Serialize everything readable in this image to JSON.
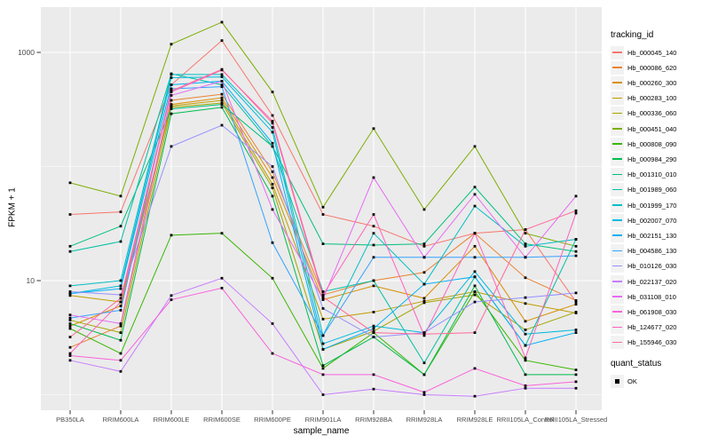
{
  "chart_data": {
    "type": "line",
    "title": "",
    "xlabel": "sample_name",
    "ylabel": "FPKM + 1",
    "y_scale": "log10",
    "ylim": [
      0.73,
      2500
    ],
    "grid": true,
    "panel_bg": "#EBEBEB",
    "grid_color": "#FFFFFF",
    "point_color": "#000000",
    "y_ticks": [
      {
        "value": 10,
        "label": "10"
      },
      {
        "value": 1000,
        "label": "1000"
      }
    ],
    "y_minor_ticks": [
      1,
      100
    ],
    "categories": [
      "PB350LA",
      "RRIM600LA",
      "RRIM600LE",
      "RRIM600SE",
      "RRIM600PE",
      "RRIM901LA",
      "RRIM928BA",
      "RRIM928LA",
      "RRIM928LE",
      "RRII105LA_Control",
      "RRII105LA_Stressed"
    ],
    "series": [
      {
        "name": "Hb_000045_140",
        "color": "#F8766D",
        "values": [
          38,
          40,
          520,
          1270,
          280,
          38,
          30,
          20,
          26,
          28,
          6.5
        ]
      },
      {
        "name": "Hb_000086_620",
        "color": "#EA8331",
        "values": [
          2.6,
          4.0,
          380,
          430,
          90,
          7.5,
          10,
          11.8,
          26,
          10.6,
          6.7
        ]
      },
      {
        "name": "Hb_000260_300",
        "color": "#D89000",
        "values": [
          4.0,
          6.0,
          350,
          400,
          80,
          6.8,
          9.0,
          7.0,
          20,
          4.4,
          6.2
        ]
      },
      {
        "name": "Hb_000283_100",
        "color": "#C09B00",
        "values": [
          7.4,
          6.5,
          340,
          380,
          70,
          4.6,
          5.3,
          6.6,
          8.0,
          6.3,
          5.2
        ]
      },
      {
        "name": "Hb_000336_060",
        "color": "#A3A500",
        "values": [
          4.5,
          3.5,
          330,
          360,
          65,
          2.5,
          3.6,
          6.4,
          7.5,
          3.7,
          5.3
        ]
      },
      {
        "name": "Hb_000451_040",
        "color": "#7CAE00",
        "values": [
          72,
          55,
          1180,
          1840,
          450,
          44,
          215,
          42,
          150,
          26,
          20
        ]
      },
      {
        "name": "Hb_000808_090",
        "color": "#39B600",
        "values": [
          3.8,
          2.3,
          25,
          26,
          10.5,
          1.7,
          3.5,
          1.5,
          8.0,
          2.0,
          1.65
        ]
      },
      {
        "name": "Hb_000984_290",
        "color": "#00BB4E",
        "values": [
          4.2,
          3.0,
          290,
          330,
          55,
          1.8,
          3.2,
          1.5,
          9.0,
          1.5,
          1.5
        ]
      },
      {
        "name": "Hb_001310_010",
        "color": "#00BF7D",
        "values": [
          20,
          30,
          320,
          350,
          150,
          21,
          20.5,
          21,
          66,
          21,
          18
        ]
      },
      {
        "name": "Hb_001989_060",
        "color": "#00C1A3",
        "values": [
          18,
          22,
          650,
          520,
          150,
          8.0,
          10,
          1.9,
          10.8,
          2.7,
          23
        ]
      },
      {
        "name": "Hb_001999_170",
        "color": "#00BFC4",
        "values": [
          9.0,
          10,
          640,
          640,
          220,
          3.3,
          26,
          9.3,
          45,
          20,
          23
        ]
      },
      {
        "name": "Hb_002007_070",
        "color": "#00BAE0",
        "values": [
          7.7,
          9.0,
          600,
          610,
          200,
          2.8,
          4.0,
          3.5,
          12,
          3.4,
          3.7
        ]
      },
      {
        "name": "Hb_002151_130",
        "color": "#00B0F6",
        "values": [
          7.7,
          8.5,
          520,
          560,
          160,
          2.5,
          3.8,
          9.3,
          10.8,
          2.7,
          3.5
        ]
      },
      {
        "name": "Hb_004586_130",
        "color": "#35A2FF",
        "values": [
          4.7,
          5.5,
          480,
          500,
          21.5,
          3.3,
          16,
          16,
          16,
          16,
          16.5
        ]
      },
      {
        "name": "Hb_010126_030",
        "color": "#9590FF",
        "values": [
          8.0,
          7.5,
          150,
          230,
          100,
          5.7,
          3.2,
          3.5,
          6.5,
          7.1,
          7.8
        ]
      },
      {
        "name": "Hb_022137_020",
        "color": "#C77CFF",
        "values": [
          2.0,
          1.6,
          7.4,
          10.5,
          4.2,
          1.0,
          1.12,
          1.0,
          0.97,
          1.14,
          1.14
        ]
      },
      {
        "name": "Hb_031108_010",
        "color": "#E76BF3",
        "values": [
          5.0,
          4.2,
          420,
          560,
          42,
          6.9,
          80,
          16,
          57,
          16,
          55
        ]
      },
      {
        "name": "Hb_061908_030",
        "color": "#FA62DB",
        "values": [
          2.2,
          2.0,
          6.8,
          8.6,
          2.3,
          1.5,
          1.5,
          1.05,
          1.7,
          1.2,
          1.3
        ]
      },
      {
        "name": "Hb_124677_020",
        "color": "#FF62BC",
        "values": [
          2.3,
          6.5,
          450,
          700,
          250,
          7.5,
          38,
          3.3,
          26,
          2.1,
          39
        ]
      },
      {
        "name": "Hb_155946_030",
        "color": "#FF6A98",
        "values": [
          3.2,
          7.0,
          460,
          710,
          240,
          7.2,
          3.5,
          3.4,
          3.5,
          28,
          41
        ]
      }
    ]
  },
  "legend": {
    "tracking_title": "tracking_id",
    "quant_title": "quant_status",
    "quant_items": [
      {
        "label": "OK"
      }
    ]
  }
}
